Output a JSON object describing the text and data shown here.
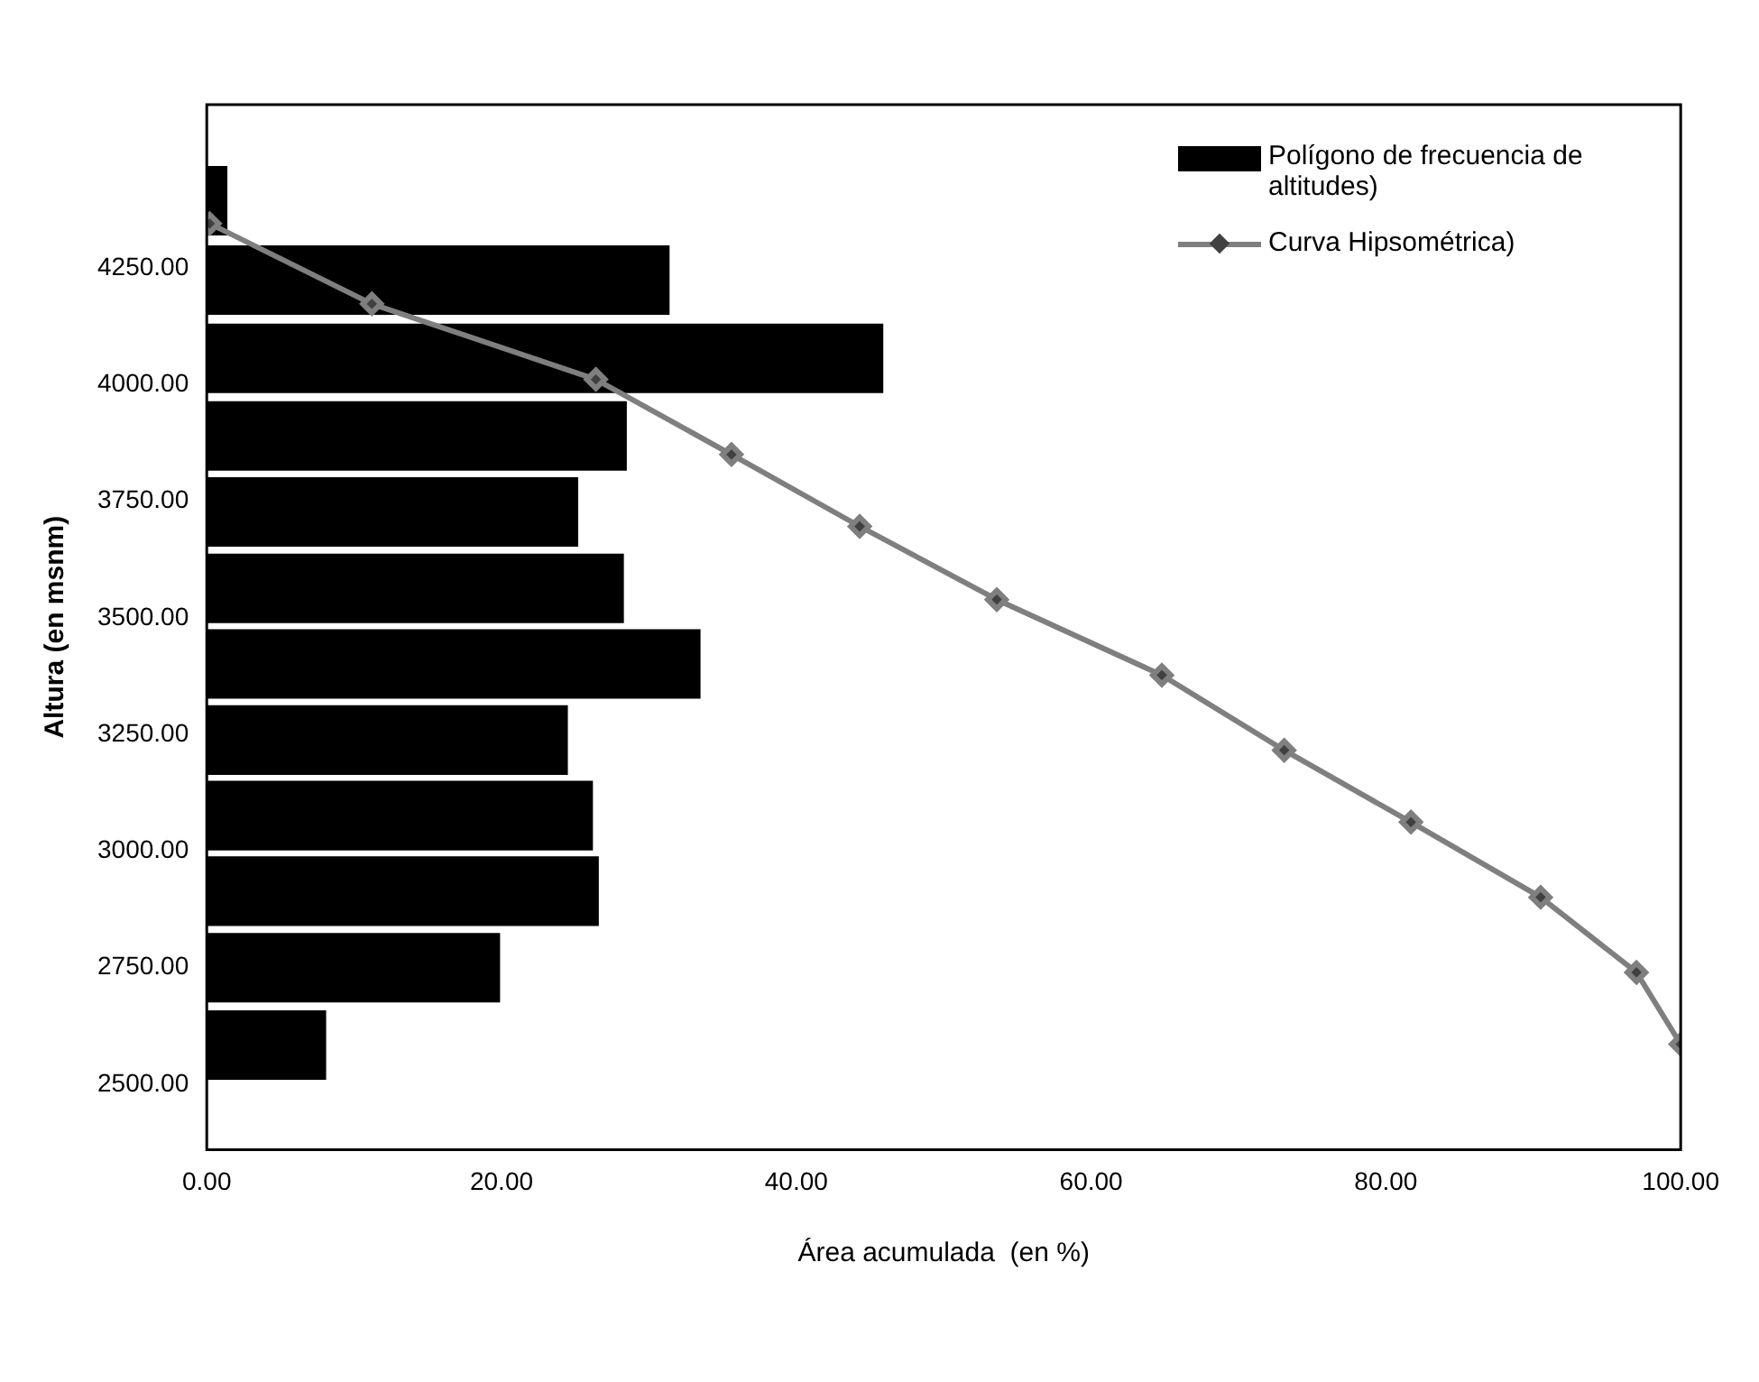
{
  "chart_data": {
    "type": "bar",
    "orientation": "horizontal",
    "xlabel": "Área acumulada  (en %)",
    "ylabel": "Altura (en msnm)",
    "xlim": [
      0,
      100
    ],
    "xticks": [
      {
        "value": 0,
        "label": "0.00"
      },
      {
        "value": 20,
        "label": "20.00"
      },
      {
        "value": 40,
        "label": "40.00"
      },
      {
        "value": 60,
        "label": "60.00"
      },
      {
        "value": 80,
        "label": "80.00"
      },
      {
        "value": 100,
        "label": "100.00"
      }
    ],
    "ylim": [
      2500,
      4460
    ],
    "yticks": [
      {
        "value": 2500,
        "label": "2500.00"
      },
      {
        "value": 2750,
        "label": "2750.00"
      },
      {
        "value": 3000,
        "label": "3000.00"
      },
      {
        "value": 3250,
        "label": "3250.00"
      },
      {
        "value": 3500,
        "label": "3500.00"
      },
      {
        "value": 3750,
        "label": "3750.00"
      },
      {
        "value": 4000,
        "label": "4000.00"
      },
      {
        "value": 4250,
        "label": "4250.00"
      }
    ],
    "grid": false,
    "legend": "top right",
    "series": [
      {
        "name": "Polígono de frecuencia de altitudes)",
        "color": "#000000",
        "x": [
          4394,
          4224,
          4056,
          3890,
          3727,
          3563,
          3401,
          3238,
          3076,
          2914,
          2750,
          2584
        ],
        "values": [
          1.4,
          31.4,
          45.9,
          28.5,
          25.2,
          28.3,
          33.5,
          24.5,
          26.2,
          26.6,
          19.9,
          8.1
        ]
      },
      {
        "type": "line",
        "name": "Curva Hipsométrica)",
        "color": "#7f7f7f",
        "marker": "diamond",
        "line_style": "solid",
        "x": [
          4345,
          4173,
          4011,
          3850,
          3696,
          3539,
          3377,
          3216,
          3062,
          2901,
          2740,
          2586
        ],
        "values": [
          0.2,
          11.2,
          26.4,
          35.6,
          44.3,
          53.6,
          64.8,
          73.1,
          81.7,
          90.5,
          97.0,
          100
        ]
      }
    ]
  }
}
